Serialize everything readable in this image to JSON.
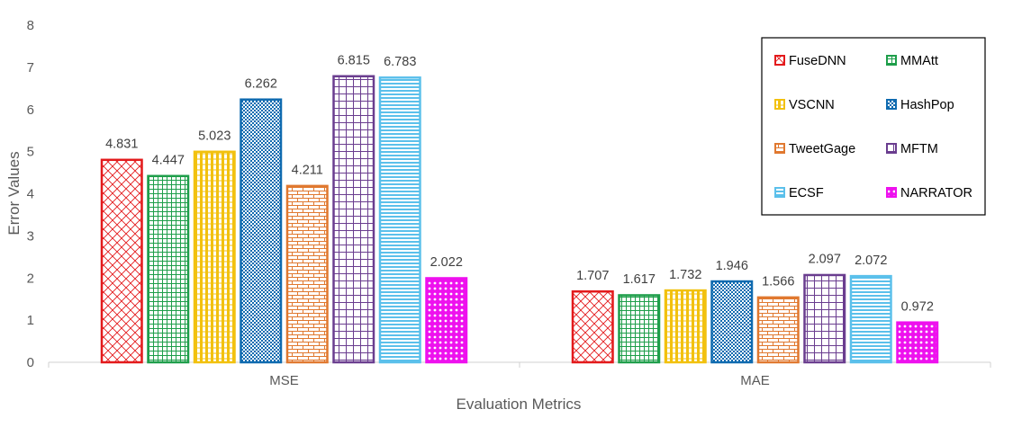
{
  "chart_data": {
    "type": "bar",
    "title": "",
    "xlabel": "Evaluation Metrics",
    "ylabel": "Error Values",
    "categories": [
      "MSE",
      "MAE"
    ],
    "ylim": [
      0,
      8
    ],
    "yticks": [
      "0",
      "1",
      "2",
      "3",
      "4",
      "5",
      "6",
      "7",
      "8"
    ],
    "grid": false,
    "legend_position": "top-right",
    "series": [
      {
        "name": "FuseDNN",
        "color": "#e31a1c",
        "pattern": "diamond",
        "values": [
          4.831,
          1.707
        ],
        "labels": [
          "4.831",
          "1.707"
        ]
      },
      {
        "name": "MMAtt",
        "color": "#1e9e4a",
        "pattern": "grid",
        "values": [
          4.447,
          1.617
        ],
        "labels": [
          "4.447",
          "1.617"
        ]
      },
      {
        "name": "VSCNN",
        "color": "#f2c10f",
        "pattern": "vertical",
        "values": [
          5.023,
          1.732
        ],
        "labels": [
          "5.023",
          "1.732"
        ]
      },
      {
        "name": "HashPop",
        "color": "#0f6bb0",
        "pattern": "checker",
        "values": [
          6.262,
          1.946
        ],
        "labels": [
          "6.262",
          "1.946"
        ]
      },
      {
        "name": "TweetGage",
        "color": "#e0782f",
        "pattern": "brick",
        "values": [
          4.211,
          1.566
        ],
        "labels": [
          "4.211",
          "1.566"
        ]
      },
      {
        "name": "MFTM",
        "color": "#6a3d8f",
        "pattern": "grid-large",
        "values": [
          6.815,
          2.097
        ],
        "labels": [
          "6.815",
          "2.097"
        ]
      },
      {
        "name": "ECSF",
        "color": "#5bc0eb",
        "pattern": "horizontal",
        "values": [
          6.783,
          2.072
        ],
        "labels": [
          "6.783",
          "2.072"
        ]
      },
      {
        "name": "NARRATOR",
        "color": "#ee11ee",
        "pattern": "dots",
        "values": [
          2.022,
          0.972
        ],
        "labels": [
          "2.022",
          "0.972"
        ]
      }
    ]
  }
}
